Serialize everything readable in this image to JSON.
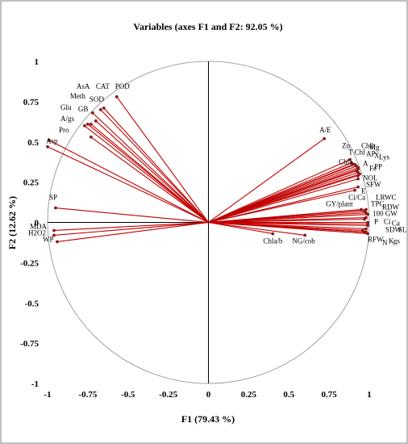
{
  "chart_data": {
    "type": "scatter",
    "subtype": "pca-correlation-circle",
    "title": "Variables (axes F1 and F2: 92.05 %)",
    "xlabel": "F1 (79.43 %)",
    "ylabel": "F2 (12.62 %)",
    "xlim": [
      -1,
      1
    ],
    "ylim": [
      -1,
      1
    ],
    "x_ticks": [
      "-1",
      "-0.75",
      "-0.5",
      "-0.25",
      "0",
      "0.25",
      "0.5",
      "0.75",
      "1"
    ],
    "y_ticks": [
      "1",
      "0.75",
      "0.5",
      "0.25",
      "0",
      "-0.25",
      "-0.5",
      "-0.75",
      "-1"
    ],
    "grid": false,
    "vector_color": "#c00000",
    "point_color": "#8b1a1a",
    "variables": [
      {
        "label": "POD",
        "x": -0.57,
        "y": 0.78
      },
      {
        "label": "CAT",
        "x": -0.65,
        "y": 0.71
      },
      {
        "label": "AsA",
        "x": -0.67,
        "y": 0.7
      },
      {
        "label": "SOD",
        "x": -0.72,
        "y": 0.68
      },
      {
        "label": "Meth",
        "x": -0.7,
        "y": 0.63
      },
      {
        "label": "Glu",
        "x": -0.73,
        "y": 0.61
      },
      {
        "label": "GB",
        "x": -0.75,
        "y": 0.61
      },
      {
        "label": "A/gs",
        "x": -0.73,
        "y": 0.53
      },
      {
        "label": "Pro",
        "x": -0.77,
        "y": 0.6
      },
      {
        "label": "Asp",
        "x": -0.99,
        "y": 0.51
      },
      {
        "label": "Asp",
        "x": -1.0,
        "y": 0.47
      },
      {
        "label": "SP",
        "x": -0.95,
        "y": 0.09
      },
      {
        "label": "MDA",
        "x": -0.96,
        "y": -0.05
      },
      {
        "label": "H2O2",
        "x": -0.96,
        "y": -0.08
      },
      {
        "label": "WP",
        "x": -0.94,
        "y": -0.12
      },
      {
        "label": "A/E",
        "x": 0.72,
        "y": 0.52
      },
      {
        "label": "Zn",
        "x": 0.88,
        "y": 0.39
      },
      {
        "label": "Chlb",
        "x": 0.89,
        "y": 0.37
      },
      {
        "label": "T Chl",
        "x": 0.9,
        "y": 0.36
      },
      {
        "label": "AP",
        "x": 0.91,
        "y": 0.36
      },
      {
        "label": "X",
        "x": 0.92,
        "y": 0.35
      },
      {
        "label": "Lys",
        "x": 0.93,
        "y": 0.34
      },
      {
        "label": "Mg",
        "x": 0.93,
        "y": 0.33
      },
      {
        "label": "Chla",
        "x": 0.92,
        "y": 0.32
      },
      {
        "label": "A",
        "x": 0.93,
        "y": 0.31
      },
      {
        "label": "Fe",
        "x": 0.94,
        "y": 0.3
      },
      {
        "label": "PP",
        "x": 0.93,
        "y": 0.29
      },
      {
        "label": "NOL",
        "x": 0.93,
        "y": 0.27
      },
      {
        "label": "SFW",
        "x": 0.93,
        "y": 0.22
      },
      {
        "label": "E",
        "x": 0.91,
        "y": 0.2
      },
      {
        "label": "Ci/Ca",
        "x": 0.98,
        "y": 0.08
      },
      {
        "label": "LRWC",
        "x": 0.97,
        "y": 0.07
      },
      {
        "label": "GY/plant",
        "x": 0.95,
        "y": 0.08
      },
      {
        "label": "TPC",
        "x": 0.98,
        "y": 0.06
      },
      {
        "label": "RDW",
        "x": 0.99,
        "y": 0.05
      },
      {
        "label": "100 GW",
        "x": 0.98,
        "y": 0.03
      },
      {
        "label": "P",
        "x": 0.97,
        "y": 0.02
      },
      {
        "label": "Ci",
        "x": 0.99,
        "y": 0.0
      },
      {
        "label": "Ca",
        "x": 0.99,
        "y": -0.01
      },
      {
        "label": "SDW",
        "x": 0.99,
        "y": -0.02
      },
      {
        "label": "SL",
        "x": 0.98,
        "y": -0.04
      },
      {
        "label": "RFW",
        "x": 0.96,
        "y": -0.05
      },
      {
        "label": "N",
        "x": 0.97,
        "y": -0.06
      },
      {
        "label": "K",
        "x": 0.98,
        "y": -0.06
      },
      {
        "label": "gs",
        "x": 0.99,
        "y": -0.07
      },
      {
        "label": "Chla/b",
        "x": 0.4,
        "y": -0.07
      },
      {
        "label": "NG/cob",
        "x": 0.6,
        "y": -0.08
      }
    ],
    "labels": [
      {
        "text": "POD",
        "lx": -0.58,
        "ly": 0.83
      },
      {
        "text": "CAT",
        "lx": -0.7,
        "ly": 0.83
      },
      {
        "text": "AsA",
        "lx": -0.82,
        "ly": 0.83
      },
      {
        "text": "SOD",
        "lx": -0.74,
        "ly": 0.75
      },
      {
        "text": "Meth",
        "lx": -0.86,
        "ly": 0.77
      },
      {
        "text": "Glu",
        "lx": -0.92,
        "ly": 0.7
      },
      {
        "text": "GB",
        "lx": -0.81,
        "ly": 0.69
      },
      {
        "text": "A/gs",
        "lx": -0.92,
        "ly": 0.63
      },
      {
        "text": "Pro",
        "lx": -0.93,
        "ly": 0.56
      },
      {
        "text": "Asp",
        "lx": -1.01,
        "ly": 0.49
      },
      {
        "text": "SP",
        "lx": -0.99,
        "ly": 0.14
      },
      {
        "text": "MDA",
        "lx": -1.11,
        "ly": -0.04
      },
      {
        "text": "H2O2",
        "lx": -1.12,
        "ly": -0.08
      },
      {
        "text": "WP",
        "lx": -1.03,
        "ly": -0.12
      },
      {
        "text": "A/E",
        "lx": 0.69,
        "ly": 0.56
      },
      {
        "text": "Zn",
        "lx": 0.83,
        "ly": 0.46
      },
      {
        "text": "Chlb",
        "lx": 0.95,
        "ly": 0.46
      },
      {
        "text": "Mg",
        "lx": 1.0,
        "ly": 0.45
      },
      {
        "text": "T Chl",
        "lx": 0.87,
        "ly": 0.42
      },
      {
        "text": "AP",
        "lx": 0.98,
        "ly": 0.41
      },
      {
        "text": "X",
        "lx": 1.03,
        "ly": 0.4
      },
      {
        "text": "Lys",
        "lx": 1.06,
        "ly": 0.39
      },
      {
        "text": "Chla",
        "lx": 0.81,
        "ly": 0.36
      },
      {
        "text": "A",
        "lx": 0.96,
        "ly": 0.35
      },
      {
        "text": "Fe",
        "lx": 1.0,
        "ly": 0.32
      },
      {
        "text": "PP",
        "lx": 1.03,
        "ly": 0.33
      },
      {
        "text": "NOL",
        "lx": 0.96,
        "ly": 0.26
      },
      {
        "text": "SFW",
        "lx": 0.98,
        "ly": 0.22
      },
      {
        "text": "E",
        "lx": 0.95,
        "ly": 0.18
      },
      {
        "text": "Ci/Ca",
        "lx": 0.87,
        "ly": 0.14
      },
      {
        "text": "LRWC",
        "lx": 1.04,
        "ly": 0.14
      },
      {
        "text": "GY/plant",
        "lx": 0.73,
        "ly": 0.1
      },
      {
        "text": "TPC",
        "lx": 1.01,
        "ly": 0.1
      },
      {
        "text": "RDW",
        "lx": 1.08,
        "ly": 0.08
      },
      {
        "text": "100 GW",
        "lx": 1.02,
        "ly": 0.04
      },
      {
        "text": "P",
        "lx": 1.03,
        "ly": -0.01
      },
      {
        "text": "Ci",
        "lx": 1.09,
        "ly": -0.01
      },
      {
        "text": "Ca",
        "lx": 1.14,
        "ly": -0.02
      },
      {
        "text": "SDW",
        "lx": 1.1,
        "ly": -0.06
      },
      {
        "text": "SL",
        "lx": 1.18,
        "ly": -0.06
      },
      {
        "text": "RFW",
        "lx": 0.99,
        "ly": -0.12
      },
      {
        "text": "N",
        "lx": 1.08,
        "ly": -0.14
      },
      {
        "text": "K",
        "lx": 1.12,
        "ly": -0.13
      },
      {
        "text": "gs",
        "lx": 1.15,
        "ly": -0.13
      },
      {
        "text": "Chla/b",
        "lx": 0.34,
        "ly": -0.13
      },
      {
        "text": "NG/cob",
        "lx": 0.52,
        "ly": -0.13
      }
    ]
  }
}
